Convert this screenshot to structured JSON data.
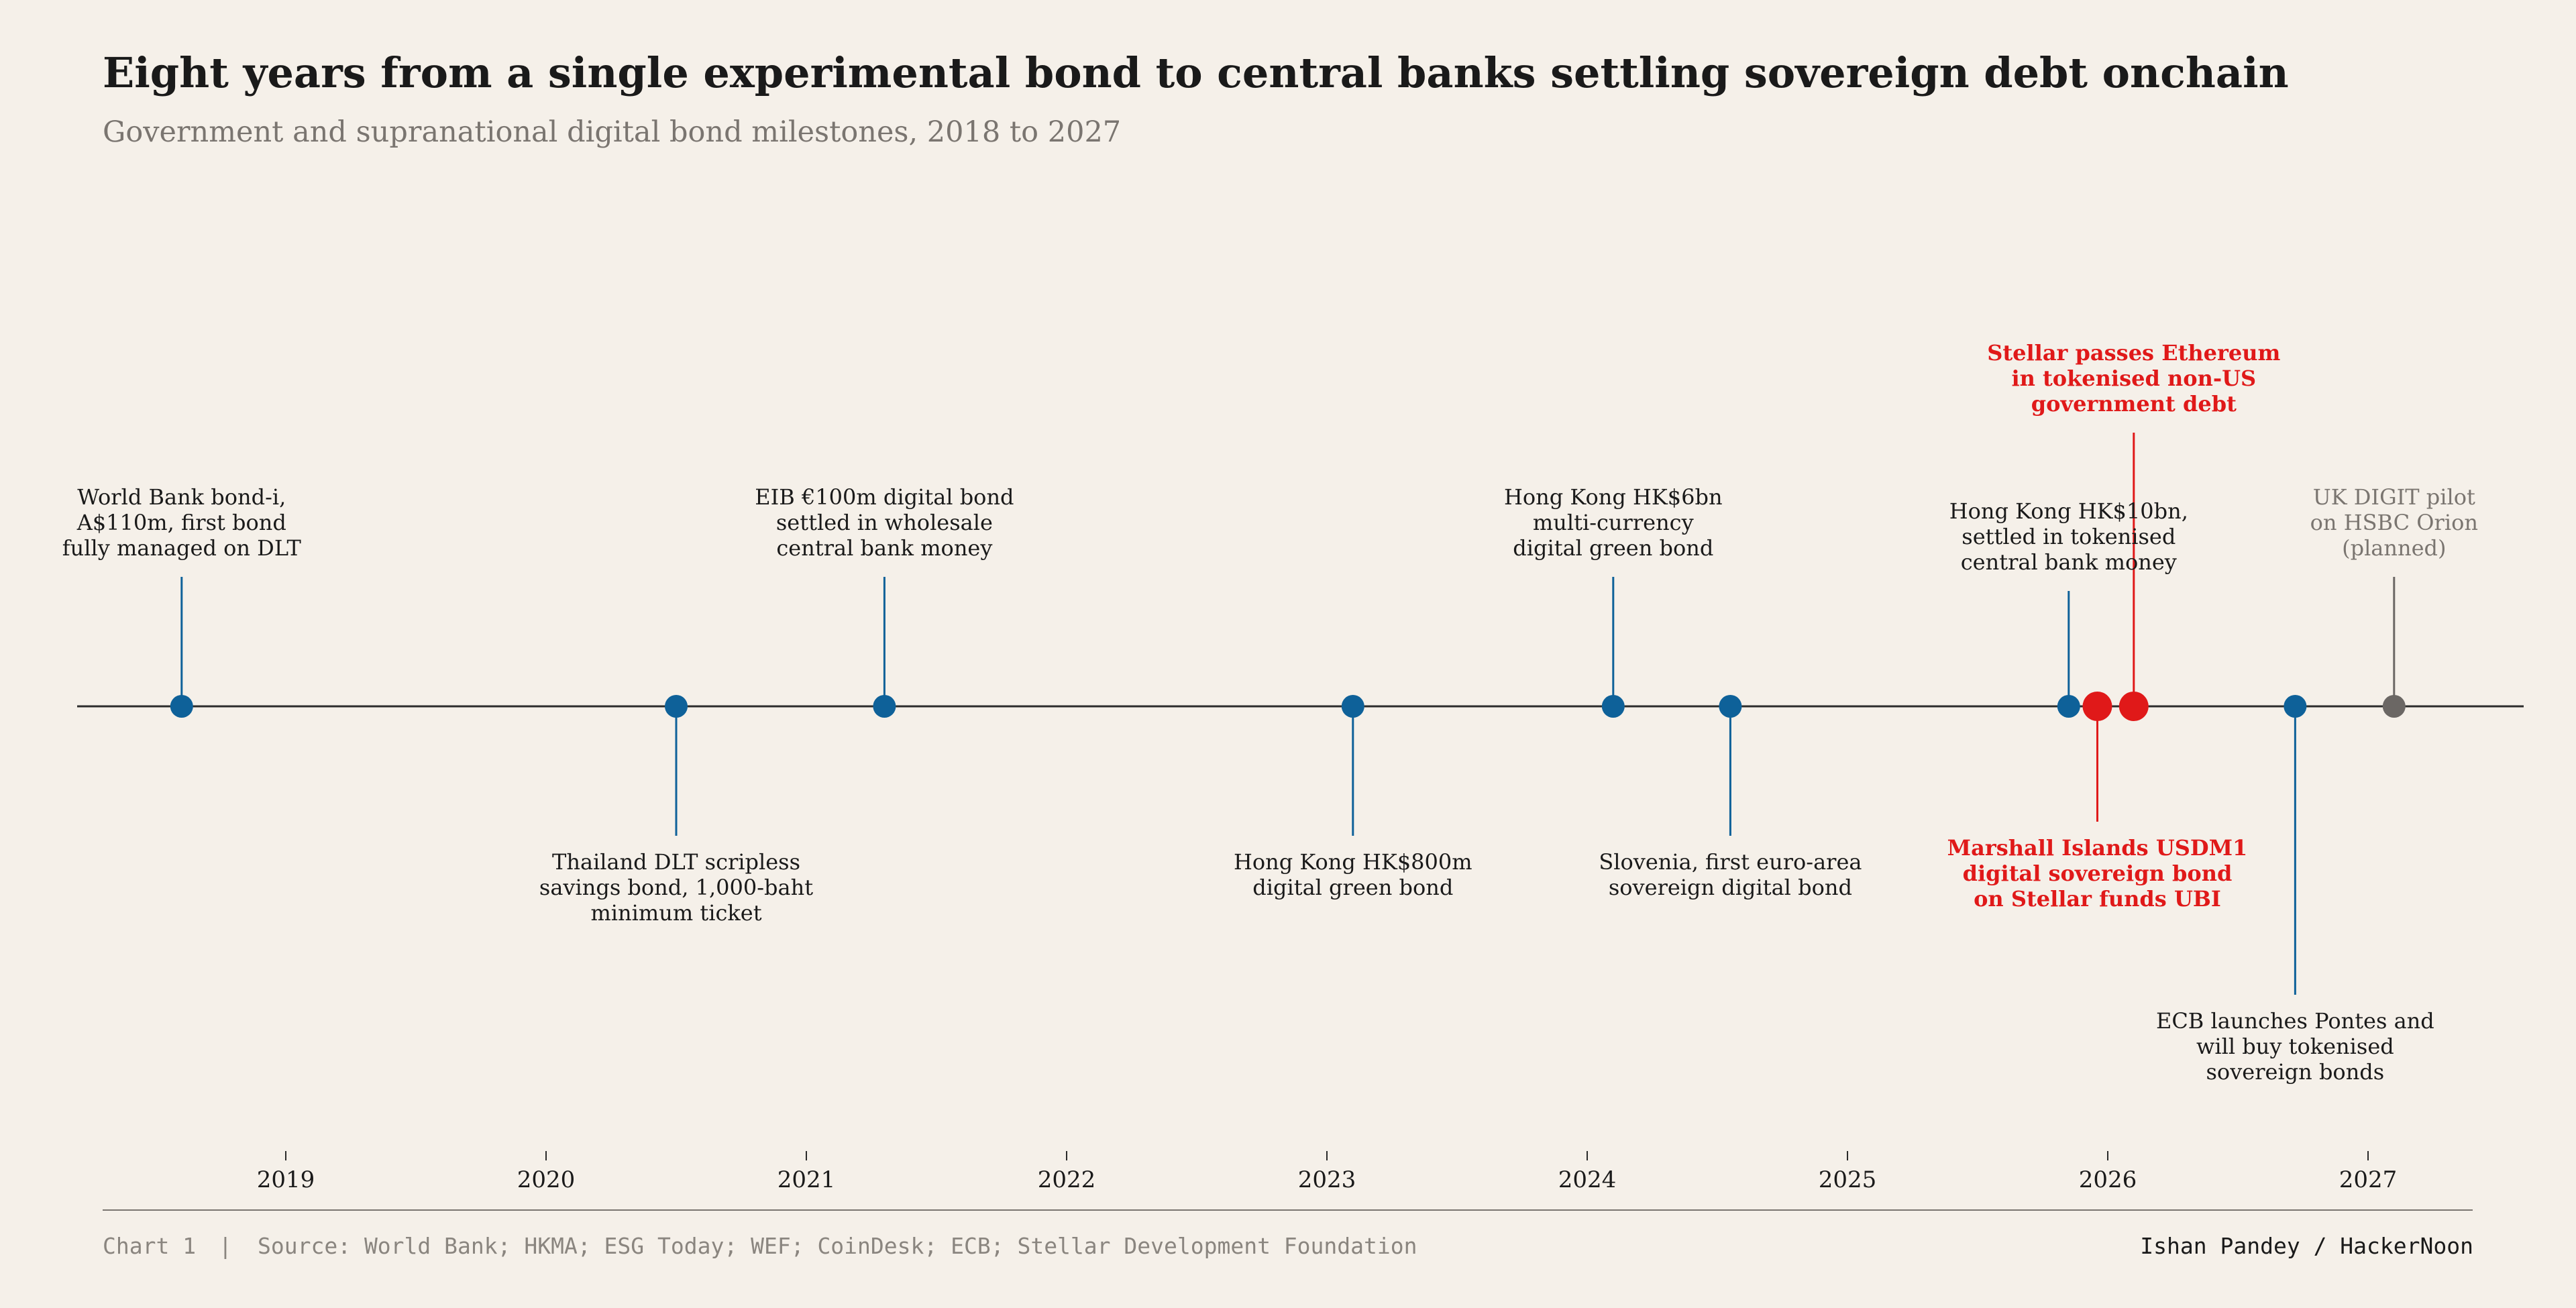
{
  "title": "Eight years from a single experimental bond to central banks settling sovereign debt onchain",
  "subtitle": "Government and supranational digital bond milestones, 2018 to 2027",
  "colors": {
    "background": "#f5f0e9",
    "text": "#1a1a1a",
    "muted": "#7a7570",
    "milestone": "#0e6199",
    "highlight": "#e01919",
    "planned": "#6b6764"
  },
  "chart_data": {
    "type": "scatter",
    "x_axis": {
      "ticks": [
        "2019",
        "2020",
        "2021",
        "2022",
        "2023",
        "2024",
        "2025",
        "2026",
        "2027"
      ],
      "range": [
        2017.4,
        2027.6
      ]
    },
    "series": [
      {
        "category": "milestone",
        "points": [
          {
            "date": "2018-08",
            "year": 2018.6,
            "lines": [
              "World Bank bond-i,",
              "A$110m, first bond",
              "fully managed on DLT"
            ],
            "side": "above",
            "stem": 193
          },
          {
            "date": "2020-07",
            "year": 2020.5,
            "lines": [
              "Thailand DLT scripless",
              "savings bond, 1,000-baht",
              "minimum ticket"
            ],
            "side": "below",
            "stem": 193
          },
          {
            "date": "2021-04",
            "year": 2021.3,
            "lines": [
              "EIB €100m digital bond",
              "settled in wholesale",
              "central bank money"
            ],
            "side": "above",
            "stem": 193
          },
          {
            "date": "2023-02",
            "year": 2023.1,
            "lines": [
              "Hong Kong HK$800m",
              "digital green bond"
            ],
            "side": "below",
            "stem": 193
          },
          {
            "date": "2024-02",
            "year": 2024.1,
            "lines": [
              "Hong Kong HK$6bn",
              "multi-currency",
              "digital green bond"
            ],
            "side": "above",
            "stem": 193
          },
          {
            "date": "2024-07",
            "year": 2024.55,
            "lines": [
              "Slovenia, first euro-area",
              "sovereign digital bond"
            ],
            "side": "below",
            "stem": 193
          },
          {
            "date": "2025-11",
            "year": 2025.85,
            "lines": [
              "Hong Kong HK$10bn,",
              "settled in tokenised",
              "central bank money"
            ],
            "side": "above",
            "stem": 172
          },
          {
            "date": "2026-09",
            "year": 2026.72,
            "lines": [
              "ECB launches Pontes and",
              "will buy tokenised",
              "sovereign bonds"
            ],
            "side": "below",
            "stem": 430
          }
        ]
      },
      {
        "category": "highlight",
        "points": [
          {
            "date": "2025-12",
            "year": 2025.96,
            "lines": [
              "Marshall Islands USDM1",
              "digital sovereign bond",
              "on Stellar funds UBI"
            ],
            "side": "below",
            "stem": 172
          },
          {
            "date": "2026-02",
            "year": 2026.1,
            "lines": [
              "Stellar passes Ethereum",
              "in tokenised non-US",
              "government debt"
            ],
            "side": "above",
            "stem": 408
          }
        ]
      },
      {
        "category": "planned",
        "points": [
          {
            "date": "2027-02",
            "year": 2027.1,
            "lines": [
              "UK DIGIT pilot",
              "on HSBC Orion",
              "(planned)"
            ],
            "side": "above",
            "stem": 193
          }
        ]
      }
    ]
  },
  "footer": {
    "chart_number": "Chart 1",
    "separator": "|",
    "source": "Source: World Bank; HKMA; ESG Today; WEF; CoinDesk; ECB; Stellar Development Foundation",
    "credit": "Ishan Pandey / HackerNoon"
  }
}
